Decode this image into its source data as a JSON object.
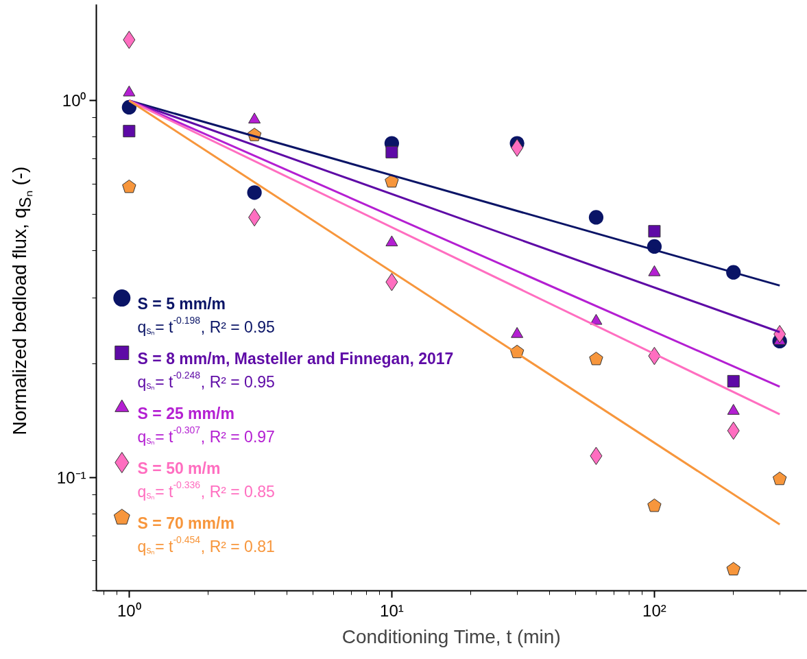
{
  "chart_data": {
    "type": "scatter",
    "xlabel": "Conditioning Time, t (min)",
    "ylabel": "Normalized bedload flux, q$_{Sₙ}$ (-)",
    "log": "xy",
    "grid": false,
    "legend": "bottom left",
    "xlim": [
      0.75,
      380
    ],
    "ylim": [
      0.05,
      1.8
    ],
    "xticks": [
      {
        "value": 1,
        "label": "10⁰"
      },
      {
        "value": 10,
        "label": "10¹"
      },
      {
        "value": 100,
        "label": "10²"
      }
    ],
    "yticks": [
      {
        "value": 0.1,
        "label": "10⁻¹"
      },
      {
        "value": 1,
        "label": "10⁰"
      }
    ],
    "series": [
      {
        "name": "S = 5 mm/m",
        "marker": "circle",
        "color": "#0a1466",
        "x": [
          1,
          3,
          10,
          30,
          60,
          100,
          200,
          300
        ],
        "values": [
          0.96,
          0.57,
          0.77,
          0.77,
          0.49,
          0.41,
          0.35,
          0.23
        ]
      },
      {
        "name": "S = 8 mm/m, Masteller and Finnegan, 2017",
        "marker": "square",
        "color": "#5e0aa6",
        "x": [
          1,
          10,
          100,
          200
        ],
        "values": [
          0.83,
          0.73,
          0.45,
          0.18
        ]
      },
      {
        "name": "S = 25 mm/m",
        "marker": "triangle",
        "color": "#b41fd2",
        "x": [
          1,
          3,
          10,
          30,
          60,
          100,
          200,
          300
        ],
        "values": [
          1.05,
          0.89,
          0.42,
          0.24,
          0.26,
          0.35,
          0.15,
          0.23
        ]
      },
      {
        "name": "S = 50 m/m",
        "marker": "diamond",
        "color": "#ff6ec0",
        "x": [
          1,
          3,
          10,
          30,
          60,
          100,
          200,
          300
        ],
        "values": [
          1.45,
          0.49,
          0.33,
          0.75,
          0.114,
          0.21,
          0.133,
          0.24
        ]
      },
      {
        "name": "S = 70 mm/m",
        "color": "#f7963c",
        "x": [
          1,
          3,
          10,
          30,
          60,
          100,
          200,
          300
        ],
        "values": [
          0.59,
          0.81,
          0.61,
          0.215,
          0.206,
          0.084,
          0.057,
          0.099
        ]
      },
      {
        "type": "line",
        "color": "#0a1466",
        "x": [
          1,
          300
        ],
        "values": [
          1,
          0.323
        ]
      },
      {
        "type": "line",
        "color": "#5e0aa6",
        "x": [
          1,
          300
        ],
        "values": [
          1,
          0.243
        ]
      },
      {
        "type": "line",
        "color": "#b41fd2",
        "x": [
          1,
          300
        ],
        "values": [
          1,
          0.174
        ]
      },
      {
        "type": "line",
        "color": "#ff6ec0",
        "x": [
          1,
          300
        ],
        "values": [
          1,
          0.147
        ]
      },
      {
        "type": "line",
        "color": "#f7963c",
        "x": [
          1,
          300
        ],
        "values": [
          1,
          0.075
        ]
      }
    ],
    "annotations": [
      "q$_{sₙ}$= t$^{-0.198}$, R² = 0.95",
      "q$_{sₙ}$= t$^{-0.248}$, R² = 0.95",
      "q$_{sₙ}$= t$^{-0.307}$, R² = 0.97",
      "q$_{sₙ}$= t$^{-0.336}$, R² = 0.85",
      "q$_{sₙ}$= t$^{-0.454}$, R² = 0.81"
    ]
  }
}
